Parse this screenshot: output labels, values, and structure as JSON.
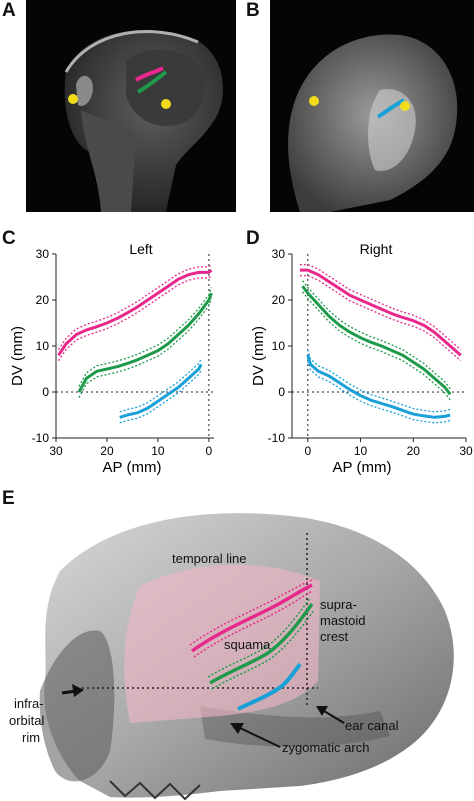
{
  "panels": {
    "a": {
      "letter": "A"
    },
    "b": {
      "letter": "B"
    },
    "c": {
      "letter": "C",
      "title": "Left",
      "xlabel": "AP (mm)",
      "ylabel": "DV (mm)"
    },
    "d": {
      "letter": "D",
      "title": "Right",
      "xlabel": "AP (mm)",
      "ylabel": "DV (mm)"
    },
    "e": {
      "letter": "E",
      "labels": {
        "temporal_line": "temporal  line",
        "squama": "squama",
        "supramastoid_1": "supra-",
        "supramastoid_2": "mastoid",
        "supramastoid_3": "crest",
        "infraorbital_1": "infra-",
        "infraorbital_2": "orbital",
        "infraorbital_3": "rim",
        "ear_canal": "ear canal",
        "zygomatic_arch": "zygomatic arch"
      }
    }
  },
  "colors": {
    "magenta": "#e8288c",
    "green": "#1f9a4a",
    "cyan": "#1aa0d8",
    "yellow": "#f2dc1a"
  },
  "chart_data": [
    {
      "type": "line",
      "title": "Left",
      "xlabel": "AP (mm)",
      "ylabel": "DV (mm)",
      "xlim": [
        30,
        -1
      ],
      "ylim": [
        -10,
        30
      ],
      "xticks": [
        30,
        20,
        10,
        0
      ],
      "yticks": [
        -10,
        0,
        10,
        20,
        30
      ],
      "series": [
        {
          "color": "#e8288c",
          "x": [
            29.5,
            28,
            26,
            24,
            22,
            20,
            18,
            16,
            14,
            12,
            10,
            8,
            6,
            4,
            2,
            0,
            -0.5
          ],
          "y": [
            8,
            10.5,
            12.5,
            13.5,
            14.2,
            15,
            16,
            17.2,
            18.5,
            20,
            21.5,
            23,
            24.5,
            25.5,
            26,
            26,
            26.5
          ]
        },
        {
          "color": "#1f9a4a",
          "x": [
            25.5,
            24,
            22,
            20,
            18,
            16,
            14,
            12,
            10,
            8,
            6,
            4,
            2,
            0,
            -0.5
          ],
          "y": [
            0,
            3,
            4.5,
            5,
            5.5,
            6.2,
            7,
            8,
            9,
            10.5,
            12.5,
            14.5,
            17,
            20,
            21.5
          ]
        },
        {
          "color": "#1aa0d8",
          "x": [
            17.5,
            16,
            14,
            12,
            10,
            8,
            6,
            4,
            2,
            1.5
          ],
          "y": [
            -5.5,
            -5,
            -4.5,
            -3.5,
            -2,
            -0.5,
            1,
            3,
            5,
            6
          ]
        }
      ]
    },
    {
      "type": "line",
      "title": "Right",
      "xlabel": "AP (mm)",
      "ylabel": "DV (mm)",
      "xlim": [
        -3,
        30
      ],
      "ylim": [
        -10,
        30
      ],
      "xticks": [
        0,
        10,
        20,
        30
      ],
      "yticks": [
        -10,
        0,
        10,
        20,
        30
      ],
      "series": [
        {
          "color": "#e8288c",
          "x": [
            -1.5,
            0,
            2,
            4,
            6,
            8,
            10,
            12,
            14,
            16,
            18,
            20,
            22,
            24,
            26,
            28,
            29
          ],
          "y": [
            26.5,
            26.5,
            25.5,
            24,
            22.5,
            21,
            20,
            19,
            18,
            17,
            16.2,
            15.5,
            14.5,
            13,
            11,
            9,
            8
          ]
        },
        {
          "color": "#1f9a4a",
          "x": [
            -1,
            0,
            2,
            4,
            6,
            8,
            10,
            12,
            14,
            16,
            18,
            20,
            22,
            24,
            26,
            27
          ],
          "y": [
            23,
            21.5,
            19,
            16.5,
            14.5,
            13,
            11.8,
            10.8,
            10,
            9,
            8,
            6.5,
            5,
            3,
            1,
            -0.5
          ]
        },
        {
          "color": "#1aa0d8",
          "x": [
            0,
            0.5,
            2,
            4,
            6,
            8,
            10,
            12,
            14,
            16,
            18,
            20,
            22,
            24,
            26,
            27
          ],
          "y": [
            8,
            6,
            4.5,
            3.5,
            2,
            0.5,
            -0.8,
            -1.8,
            -2.5,
            -3.2,
            -4,
            -4.8,
            -5.2,
            -5.5,
            -5.3,
            -5
          ]
        }
      ]
    }
  ]
}
